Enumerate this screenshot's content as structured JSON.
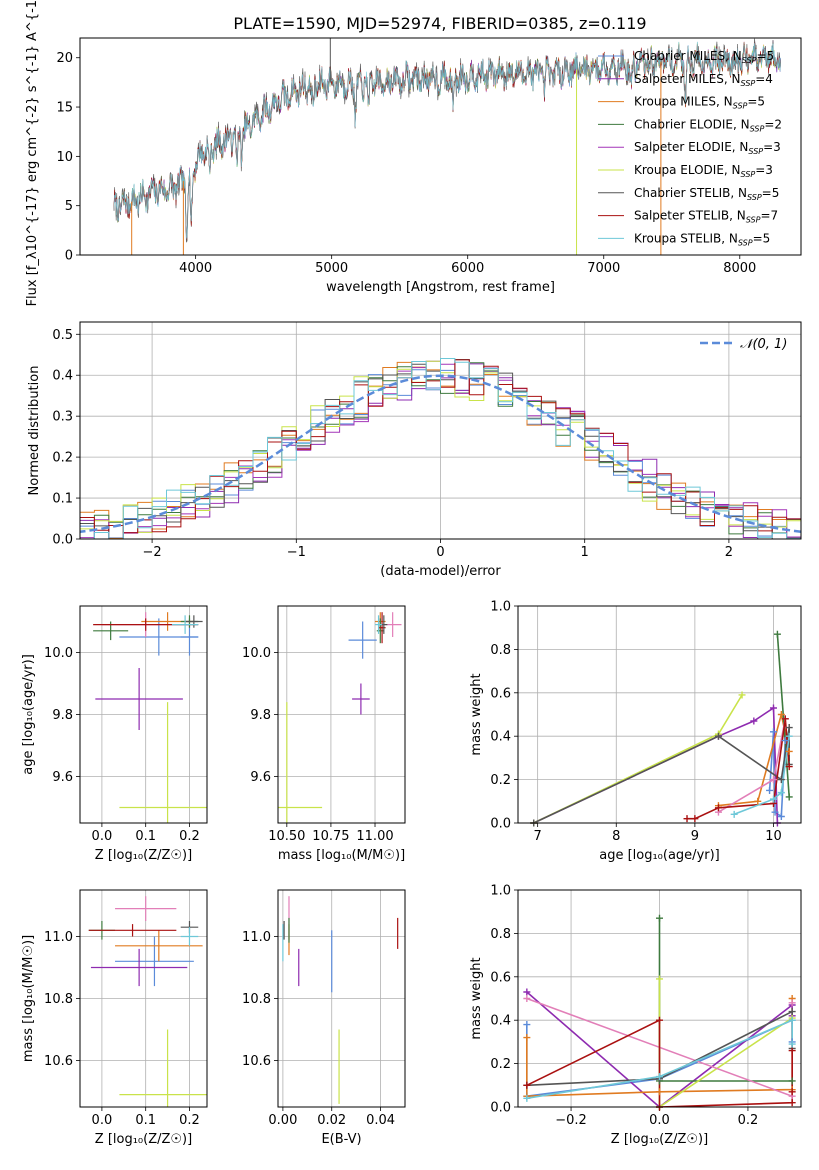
{
  "title": "PLATE=1590, MJD=52974, FIBERID=0385, z=0.119",
  "colors": {
    "chabrier_miles": "#5b8bd9",
    "salpeter_miles": "#8e2bb0",
    "kroupa_miles": "#e07b21",
    "chabrier_elodie": "#3e7a3e",
    "salpeter_elodie": "#a335b8",
    "kroupa_elodie": "#c9e34a",
    "chabrier_stelib": "#555555",
    "salpeter_stelib": "#aa1111",
    "kroupa_stelib": "#6ec8d8",
    "pink": "#e27fb8",
    "gaussian": "#5b8bd9",
    "grid": "#b0b0b0"
  },
  "models": [
    {
      "name": "Chabrier MILES",
      "nssp": "5",
      "color": "#5b8bd9"
    },
    {
      "name": "Salpeter MILES",
      "nssp": "4",
      "color": "#8e2bb0"
    },
    {
      "name": "Kroupa MILES",
      "nssp": "5",
      "color": "#e07b21"
    },
    {
      "name": "Chabrier ELODIE",
      "nssp": "2",
      "color": "#3e7a3e"
    },
    {
      "name": "Salpeter ELODIE",
      "nssp": "3",
      "color": "#a335b8"
    },
    {
      "name": "Kroupa ELODIE",
      "nssp": "3",
      "color": "#c9e34a"
    },
    {
      "name": "Chabrier STELIB",
      "nssp": "5",
      "color": "#555555"
    },
    {
      "name": "Salpeter STELIB",
      "nssp": "7",
      "color": "#aa1111"
    },
    {
      "name": "Kroupa STELIB",
      "nssp": "5",
      "color": "#6ec8d8"
    }
  ],
  "chart_data": [
    {
      "id": "spectrum",
      "type": "line",
      "xlabel": "wavelength [Angstrom, rest frame]",
      "ylabel": "Flux [f_λ10^{-17} erg cm^{-2} s^{-1} A^{-1}]",
      "xlim": [
        3150,
        8450
      ],
      "ylim": [
        0,
        22
      ],
      "xticks": [
        4000,
        5000,
        6000,
        7000,
        8000
      ],
      "yticks": [
        0,
        5,
        10,
        15,
        20
      ],
      "continuum": [
        [
          3400,
          4.8
        ],
        [
          3550,
          5.5
        ],
        [
          3700,
          6.5
        ],
        [
          3850,
          6.8
        ],
        [
          3950,
          8.0
        ],
        [
          4050,
          10.5
        ],
        [
          4200,
          11.5
        ],
        [
          4350,
          12.5
        ],
        [
          4500,
          14.5
        ],
        [
          4650,
          16.0
        ],
        [
          4800,
          17.0
        ],
        [
          5000,
          17.5
        ],
        [
          5200,
          17.3
        ],
        [
          5400,
          17.6
        ],
        [
          5600,
          17.9
        ],
        [
          5800,
          17.8
        ],
        [
          6000,
          18.1
        ],
        [
          6200,
          18.4
        ],
        [
          6400,
          18.5
        ],
        [
          6600,
          18.5
        ],
        [
          6800,
          18.8
        ],
        [
          7000,
          19.0
        ],
        [
          7200,
          19.2
        ],
        [
          7400,
          19.6
        ],
        [
          7600,
          19.7
        ],
        [
          7800,
          19.7
        ],
        [
          8000,
          19.8
        ],
        [
          8200,
          19.8
        ]
      ],
      "absorption": [
        [
          3934,
          6.0
        ],
        [
          3968,
          5.5
        ],
        [
          4102,
          2.5
        ],
        [
          4304,
          3.0
        ],
        [
          4340,
          2.0
        ],
        [
          4861,
          2.5
        ],
        [
          5175,
          3.0
        ],
        [
          5270,
          2.0
        ],
        [
          5890,
          3.0
        ],
        [
          6563,
          1.8
        ],
        [
          7200,
          2.5
        ],
        [
          7600,
          3.5
        ]
      ],
      "dropouts": [
        [
          3530,
          0
        ],
        [
          3910,
          0
        ],
        [
          4990,
          22
        ],
        [
          6800,
          0
        ],
        [
          7420,
          0
        ]
      ]
    },
    {
      "id": "residuals",
      "type": "histogram",
      "xlabel": "(data-model)/error",
      "ylabel": "Normed distribution",
      "xlim": [
        -2.5,
        2.5
      ],
      "ylim": [
        0,
        0.53
      ],
      "xticks": [
        -2,
        -1,
        0,
        1,
        2
      ],
      "xtick_labels": [
        "−2",
        "−1",
        "0",
        "1",
        "2"
      ],
      "yticks": [
        0.0,
        0.1,
        0.2,
        0.3,
        0.4,
        0.5
      ],
      "ytick_labels": [
        "0.0",
        "0.1",
        "0.2",
        "0.3",
        "0.4",
        "0.5"
      ],
      "bin_width": 0.1,
      "series_means": [
        0.0,
        0.05,
        -0.03,
        0.02,
        0.06,
        -0.05,
        0.01,
        0.04,
        -0.02
      ],
      "gaussian_label": "𝒩(0, 1)"
    },
    {
      "id": "age_vs_z",
      "type": "scatter",
      "xlabel": "Z [log₁₀(Z/Z☉)]",
      "ylabel": "age  [log₁₀(age/yr)]",
      "xlim": [
        -0.05,
        0.24
      ],
      "ylim": [
        9.45,
        10.15
      ],
      "xticks": [
        0.0,
        0.1,
        0.2
      ],
      "xtick_labels": [
        "0.0",
        "0.1",
        "0.2"
      ],
      "yticks": [
        9.6,
        9.8,
        10.0
      ],
      "ytick_labels": [
        "9.6",
        "9.8",
        "10.0"
      ],
      "points": [
        {
          "x": 0.13,
          "y": 10.05,
          "xerr": 0.09,
          "yerr": 0.06,
          "color": "#5b8bd9"
        },
        {
          "x": 0.2,
          "y": 10.05,
          "xerr": 0.02,
          "yerr": 0.06,
          "color": "#5b8bd9"
        },
        {
          "x": 0.1,
          "y": 10.09,
          "xerr": 0.1,
          "yerr": 0.04,
          "color": "#e27fb8"
        },
        {
          "x": 0.15,
          "y": 10.1,
          "xerr": 0.06,
          "yerr": 0.03,
          "color": "#e07b21"
        },
        {
          "x": 0.2,
          "y": 10.1,
          "xerr": 0.02,
          "yerr": 0.02,
          "color": "#3e7a3e"
        },
        {
          "x": 0.02,
          "y": 10.07,
          "xerr": 0.04,
          "yerr": 0.03,
          "color": "#3e7a3e"
        },
        {
          "x": 0.085,
          "y": 9.85,
          "xerr": 0.1,
          "yerr": 0.1,
          "color": "#8e2bb0"
        },
        {
          "x": 0.15,
          "y": 9.5,
          "xerr": 0.11,
          "yerr": 0.34,
          "color": "#c9e34a"
        },
        {
          "x": 0.1,
          "y": 10.09,
          "xerr": 0.12,
          "yerr": 0.02,
          "color": "#aa1111"
        },
        {
          "x": 0.21,
          "y": 10.1,
          "xerr": 0.02,
          "yerr": 0.02,
          "color": "#555555"
        },
        {
          "x": 0.19,
          "y": 10.09,
          "xerr": 0.03,
          "yerr": 0.03,
          "color": "#6ec8d8"
        }
      ]
    },
    {
      "id": "age_vs_mass",
      "type": "scatter",
      "xlabel": "mass [log₁₀(M/M☉)]",
      "ylabel": "",
      "xlim": [
        10.45,
        11.17
      ],
      "ylim": [
        9.45,
        10.15
      ],
      "xticks": [
        10.5,
        10.75,
        11.0
      ],
      "xtick_labels": [
        "10.50",
        "10.75",
        "11.00"
      ],
      "yticks": [
        9.6,
        9.8,
        10.0
      ],
      "ytick_labels": [
        "9.6",
        "9.8",
        "10.0"
      ],
      "points": [
        {
          "x": 10.93,
          "y": 10.04,
          "xerr": 0.08,
          "yerr": 0.06,
          "color": "#5b8bd9"
        },
        {
          "x": 11.1,
          "y": 10.09,
          "xerr": 0.05,
          "yerr": 0.04,
          "color": "#e27fb8"
        },
        {
          "x": 11.03,
          "y": 10.1,
          "xerr": 0.03,
          "yerr": 0.03,
          "color": "#e07b21"
        },
        {
          "x": 11.03,
          "y": 10.07,
          "xerr": 0.02,
          "yerr": 0.04,
          "color": "#3e7a3e"
        },
        {
          "x": 10.92,
          "y": 9.85,
          "xerr": 0.05,
          "yerr": 0.05,
          "color": "#8e2bb0"
        },
        {
          "x": 10.5,
          "y": 9.5,
          "xerr": 0.2,
          "yerr": 0.34,
          "color": "#c9e34a"
        },
        {
          "x": 11.04,
          "y": 10.08,
          "xerr": 0.02,
          "yerr": 0.05,
          "color": "#aa1111"
        },
        {
          "x": 11.05,
          "y": 10.09,
          "xerr": 0.02,
          "yerr": 0.03,
          "color": "#555555"
        },
        {
          "x": 11.02,
          "y": 10.09,
          "xerr": 0.02,
          "yerr": 0.03,
          "color": "#6ec8d8"
        }
      ]
    },
    {
      "id": "mass_weight_vs_age",
      "type": "line",
      "xlabel": "age  [log₁₀(age/yr)]",
      "ylabel": "mass weight",
      "xlim": [
        6.75,
        10.35
      ],
      "ylim": [
        0,
        1.0
      ],
      "xticks": [
        7,
        8,
        9,
        10
      ],
      "xtick_labels": [
        "7",
        "8",
        "9",
        "10"
      ],
      "yticks": [
        0.0,
        0.2,
        0.4,
        0.6,
        0.8,
        1.0
      ],
      "ytick_labels": [
        "0.0",
        "0.2",
        "0.4",
        "0.6",
        "0.8",
        "1.0"
      ],
      "series": [
        {
          "color": "#5b8bd9",
          "x": [
            9.95,
            10.0,
            10.02,
            10.1,
            10.15
          ],
          "y": [
            0.15,
            0.42,
            0.05,
            0.03,
            0.38
          ]
        },
        {
          "color": "#8e2bb0",
          "x": [
            6.95,
            9.3,
            9.75,
            10.0,
            10.05
          ],
          "y": [
            0.0,
            0.4,
            0.47,
            0.53,
            0.0
          ]
        },
        {
          "color": "#e07b21",
          "x": [
            9.3,
            9.8,
            10.1,
            10.2
          ],
          "y": [
            0.08,
            0.1,
            0.5,
            0.33
          ]
        },
        {
          "color": "#3e7a3e",
          "x": [
            10.05,
            10.2
          ],
          "y": [
            0.87,
            0.12
          ]
        },
        {
          "color": "#c9e34a",
          "x": [
            6.95,
            9.3,
            9.6
          ],
          "y": [
            0.0,
            0.41,
            0.59
          ]
        },
        {
          "color": "#e27fb8",
          "x": [
            9.3,
            10.0,
            10.15
          ],
          "y": [
            0.05,
            0.2,
            0.48
          ]
        },
        {
          "color": "#555555",
          "x": [
            6.95,
            9.3,
            10.1,
            10.2,
            10.2
          ],
          "y": [
            0.0,
            0.4,
            0.2,
            0.44,
            0.27
          ]
        },
        {
          "color": "#aa1111",
          "x": [
            8.9,
            9.0,
            9.3,
            10.0,
            10.15,
            10.2
          ],
          "y": [
            0.02,
            0.02,
            0.07,
            0.09,
            0.48,
            0.26
          ]
        },
        {
          "color": "#6ec8d8",
          "x": [
            9.5,
            10.0,
            10.1,
            10.2
          ],
          "y": [
            0.04,
            0.11,
            0.14,
            0.4
          ]
        }
      ]
    },
    {
      "id": "mass_vs_z",
      "type": "scatter",
      "xlabel": "Z [log₁₀(Z/Z☉)]",
      "ylabel": "mass [log₁₀(M/M☉)]",
      "xlim": [
        -0.05,
        0.24
      ],
      "ylim": [
        10.45,
        11.15
      ],
      "xticks": [
        0.0,
        0.1,
        0.2
      ],
      "xtick_labels": [
        "0.0",
        "0.1",
        "0.2"
      ],
      "yticks": [
        10.6,
        10.8,
        11.0
      ],
      "ytick_labels": [
        "10.6",
        "10.8",
        "11.0"
      ],
      "points": [
        {
          "x": 0.12,
          "y": 10.92,
          "xerr": 0.09,
          "yerr": 0.08,
          "color": "#5b8bd9"
        },
        {
          "x": 0.1,
          "y": 11.09,
          "xerr": 0.07,
          "yerr": 0.04,
          "color": "#e27fb8"
        },
        {
          "x": 0.13,
          "y": 10.97,
          "xerr": 0.1,
          "yerr": 0.05,
          "color": "#e07b21"
        },
        {
          "x": 0.0,
          "y": 11.02,
          "xerr": 0.03,
          "yerr": 0.03,
          "color": "#3e7a3e"
        },
        {
          "x": 0.085,
          "y": 10.9,
          "xerr": 0.11,
          "yerr": 0.06,
          "color": "#8e2bb0"
        },
        {
          "x": 0.15,
          "y": 10.49,
          "xerr": 0.11,
          "yerr": 0.21,
          "color": "#c9e34a"
        },
        {
          "x": 0.07,
          "y": 11.02,
          "xerr": 0.1,
          "yerr": 0.02,
          "color": "#aa1111"
        },
        {
          "x": 0.2,
          "y": 11.03,
          "xerr": 0.02,
          "yerr": 0.02,
          "color": "#555555"
        },
        {
          "x": 0.2,
          "y": 11.0,
          "xerr": 0.02,
          "yerr": 0.03,
          "color": "#6ec8d8"
        }
      ]
    },
    {
      "id": "mass_vs_ebv",
      "type": "scatter",
      "xlabel": "E(B-V)",
      "ylabel": "",
      "xlim": [
        -0.002,
        0.05
      ],
      "ylim": [
        10.45,
        11.15
      ],
      "xticks": [
        0.0,
        0.02,
        0.04
      ],
      "xtick_labels": [
        "0.00",
        "0.02",
        "0.04"
      ],
      "yticks": [
        10.6,
        10.8,
        11.0
      ],
      "ytick_labels": [
        "10.6",
        "10.8",
        "11.0"
      ],
      "points": [
        {
          "x": 0.02,
          "y": 10.92,
          "xerr": 0.0,
          "yerr": 0.1,
          "color": "#5b8bd9"
        },
        {
          "x": 0.0025,
          "y": 11.06,
          "xerr": 0.0,
          "yerr": 0.07,
          "color": "#e27fb8"
        },
        {
          "x": 0.0025,
          "y": 10.99,
          "xerr": 0.0,
          "yerr": 0.05,
          "color": "#e07b21"
        },
        {
          "x": 0.0025,
          "y": 11.02,
          "xerr": 0.0,
          "yerr": 0.04,
          "color": "#3e7a3e"
        },
        {
          "x": 0.0065,
          "y": 10.9,
          "xerr": 0.0,
          "yerr": 0.06,
          "color": "#8e2bb0"
        },
        {
          "x": 0.023,
          "y": 10.58,
          "xerr": 0.0,
          "yerr": 0.12,
          "color": "#c9e34a"
        },
        {
          "x": 0.047,
          "y": 11.01,
          "xerr": 0.0,
          "yerr": 0.05,
          "color": "#aa1111"
        },
        {
          "x": 0.0005,
          "y": 11.02,
          "xerr": 0.0,
          "yerr": 0.03,
          "color": "#555555"
        },
        {
          "x": 0.0,
          "y": 10.98,
          "xerr": 0.0,
          "yerr": 0.06,
          "color": "#6ec8d8"
        }
      ]
    },
    {
      "id": "mass_weight_vs_z",
      "type": "line",
      "xlabel": "Z [log₁₀(Z/Z☉)]",
      "ylabel": "mass weight",
      "xlim": [
        -0.32,
        0.32
      ],
      "ylim": [
        0,
        1.0
      ],
      "xticks": [
        -0.2,
        0.0,
        0.2
      ],
      "xtick_labels": [
        "−0.2",
        "0.0",
        "0.2"
      ],
      "yticks": [
        0.0,
        0.2,
        0.4,
        0.6,
        0.8,
        1.0
      ],
      "ytick_labels": [
        "0.0",
        "0.2",
        "0.4",
        "0.6",
        "0.8",
        "1.0"
      ],
      "series": [
        {
          "color": "#5b8bd9",
          "x": [
            -0.3,
            -0.3,
            0.0,
            0.3,
            0.3
          ],
          "y": [
            0.38,
            0.05,
            0.13,
            0.4,
            0.3
          ]
        },
        {
          "color": "#8e2bb0",
          "x": [
            -0.3,
            0.0,
            0.3,
            0.3
          ],
          "y": [
            0.53,
            0.0,
            0.47,
            0.42
          ]
        },
        {
          "color": "#e07b21",
          "x": [
            -0.3,
            -0.3,
            0.0,
            0.3,
            0.3
          ],
          "y": [
            0.32,
            0.05,
            0.07,
            0.08,
            0.5
          ]
        },
        {
          "color": "#3e7a3e",
          "x": [
            0.0,
            0.0,
            0.3
          ],
          "y": [
            0.87,
            0.12,
            0.12
          ]
        },
        {
          "color": "#c9e34a",
          "x": [
            0.0,
            0.0,
            0.3
          ],
          "y": [
            0.59,
            0.0,
            0.41
          ]
        },
        {
          "color": "#e27fb8",
          "x": [
            -0.3,
            0.3,
            0.3
          ],
          "y": [
            0.5,
            0.05,
            0.48
          ]
        },
        {
          "color": "#555555",
          "x": [
            -0.3,
            0.0,
            0.3,
            0.3
          ],
          "y": [
            0.1,
            0.13,
            0.44,
            0.27
          ]
        },
        {
          "color": "#aa1111",
          "x": [
            -0.3,
            0.0,
            0.0,
            0.3,
            0.3,
            0.3
          ],
          "y": [
            0.1,
            0.4,
            0.0,
            0.02,
            0.26,
            0.07
          ]
        },
        {
          "color": "#6ec8d8",
          "x": [
            -0.3,
            0.0,
            0.3,
            0.3
          ],
          "y": [
            0.04,
            0.14,
            0.4,
            0.29
          ]
        }
      ]
    }
  ]
}
